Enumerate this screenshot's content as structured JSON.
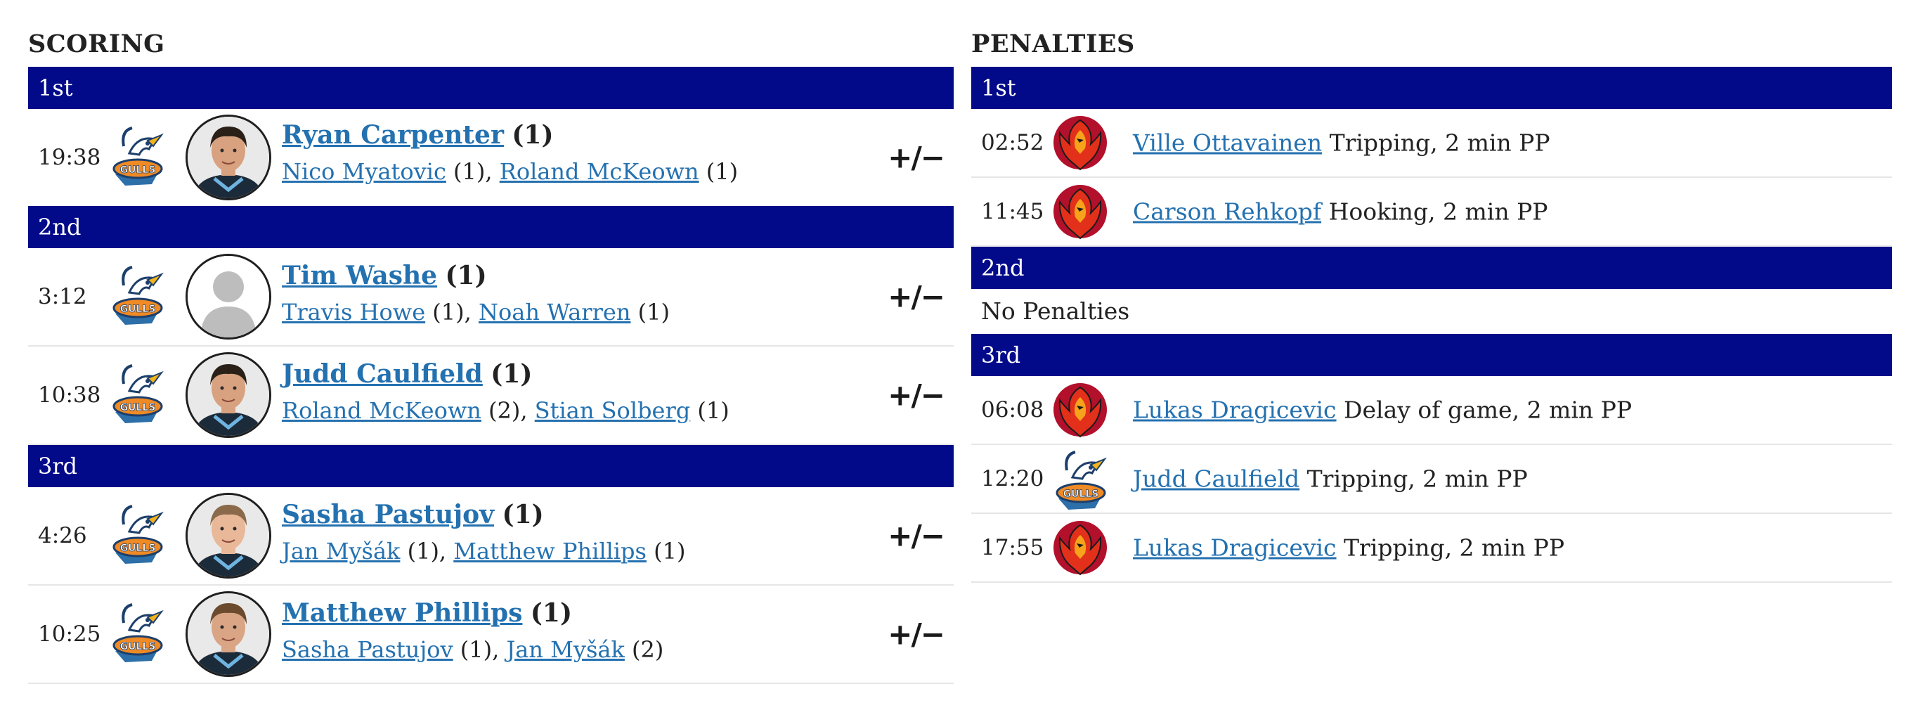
{
  "scoring": {
    "title": "SCORING",
    "periods": [
      {
        "label": "1st",
        "goals": [
          {
            "time": "19:38",
            "team_logo": "gulls-logo",
            "avatar": "player-photo-dark-hair",
            "scorer": "Ryan Carpenter",
            "scorer_count": "(1)",
            "assist1": "Nico Myatovic",
            "assist1_count": "(1),",
            "assist2": "Roland McKeown",
            "assist2_count": "(1)",
            "plusminus": "+/−"
          }
        ]
      },
      {
        "label": "2nd",
        "goals": [
          {
            "time": "3:12",
            "team_logo": "gulls-logo",
            "avatar": "placeholder-silhouette",
            "scorer": "Tim Washe",
            "scorer_count": "(1)",
            "assist1": "Travis Howe",
            "assist1_count": "(1),",
            "assist2": "Noah Warren",
            "assist2_count": "(1)",
            "plusminus": "+/−"
          },
          {
            "time": "10:38",
            "team_logo": "gulls-logo",
            "avatar": "player-photo-dark-hair",
            "scorer": "Judd Caulfield",
            "scorer_count": "(1)",
            "assist1": "Roland McKeown",
            "assist1_count": "(2),",
            "assist2": "Stian Solberg",
            "assist2_count": "(1)",
            "plusminus": "+/−"
          }
        ]
      },
      {
        "label": "3rd",
        "goals": [
          {
            "time": "4:26",
            "team_logo": "gulls-logo",
            "avatar": "player-photo-short-hair",
            "scorer": "Sasha Pastujov",
            "scorer_count": "(1)",
            "assist1": "Jan Myšák",
            "assist1_count": "(1),",
            "assist2": "Matthew Phillips",
            "assist2_count": "(1)",
            "plusminus": "+/−"
          },
          {
            "time": "10:25",
            "team_logo": "gulls-logo",
            "avatar": "player-photo-long-hair",
            "scorer": "Matthew Phillips",
            "scorer_count": "(1)",
            "assist1": "Sasha Pastujov",
            "assist1_count": "(1),",
            "assist2": "Jan Myšák",
            "assist2_count": "(2)",
            "plusminus": "+/−"
          }
        ]
      }
    ]
  },
  "penalties": {
    "title": "PENALTIES",
    "periods": [
      {
        "label": "1st",
        "items": [
          {
            "time": "02:52",
            "team_logo": "firebirds-logo",
            "player": "Ville Ottavainen",
            "infraction": "Tripping, 2 min PP"
          },
          {
            "time": "11:45",
            "team_logo": "firebirds-logo",
            "player": "Carson Rehkopf",
            "infraction": "Hooking, 2 min PP"
          }
        ]
      },
      {
        "label": "2nd",
        "empty_text": "No Penalties",
        "items": []
      },
      {
        "label": "3rd",
        "items": [
          {
            "time": "06:08",
            "team_logo": "firebirds-logo",
            "player": "Lukas Dragicevic",
            "infraction": "Delay of game, 2 min PP"
          },
          {
            "time": "12:20",
            "team_logo": "gulls-logo",
            "player": "Judd Caulfield",
            "infraction": "Tripping, 2 min PP"
          },
          {
            "time": "17:55",
            "team_logo": "firebirds-logo",
            "player": "Lukas Dragicevic",
            "infraction": "Tripping, 2 min PP"
          }
        ]
      }
    ]
  },
  "colors": {
    "period_header_bg": "#020a8a",
    "link": "#2471b0",
    "text": "#222222",
    "divider": "#e6e6e6"
  }
}
